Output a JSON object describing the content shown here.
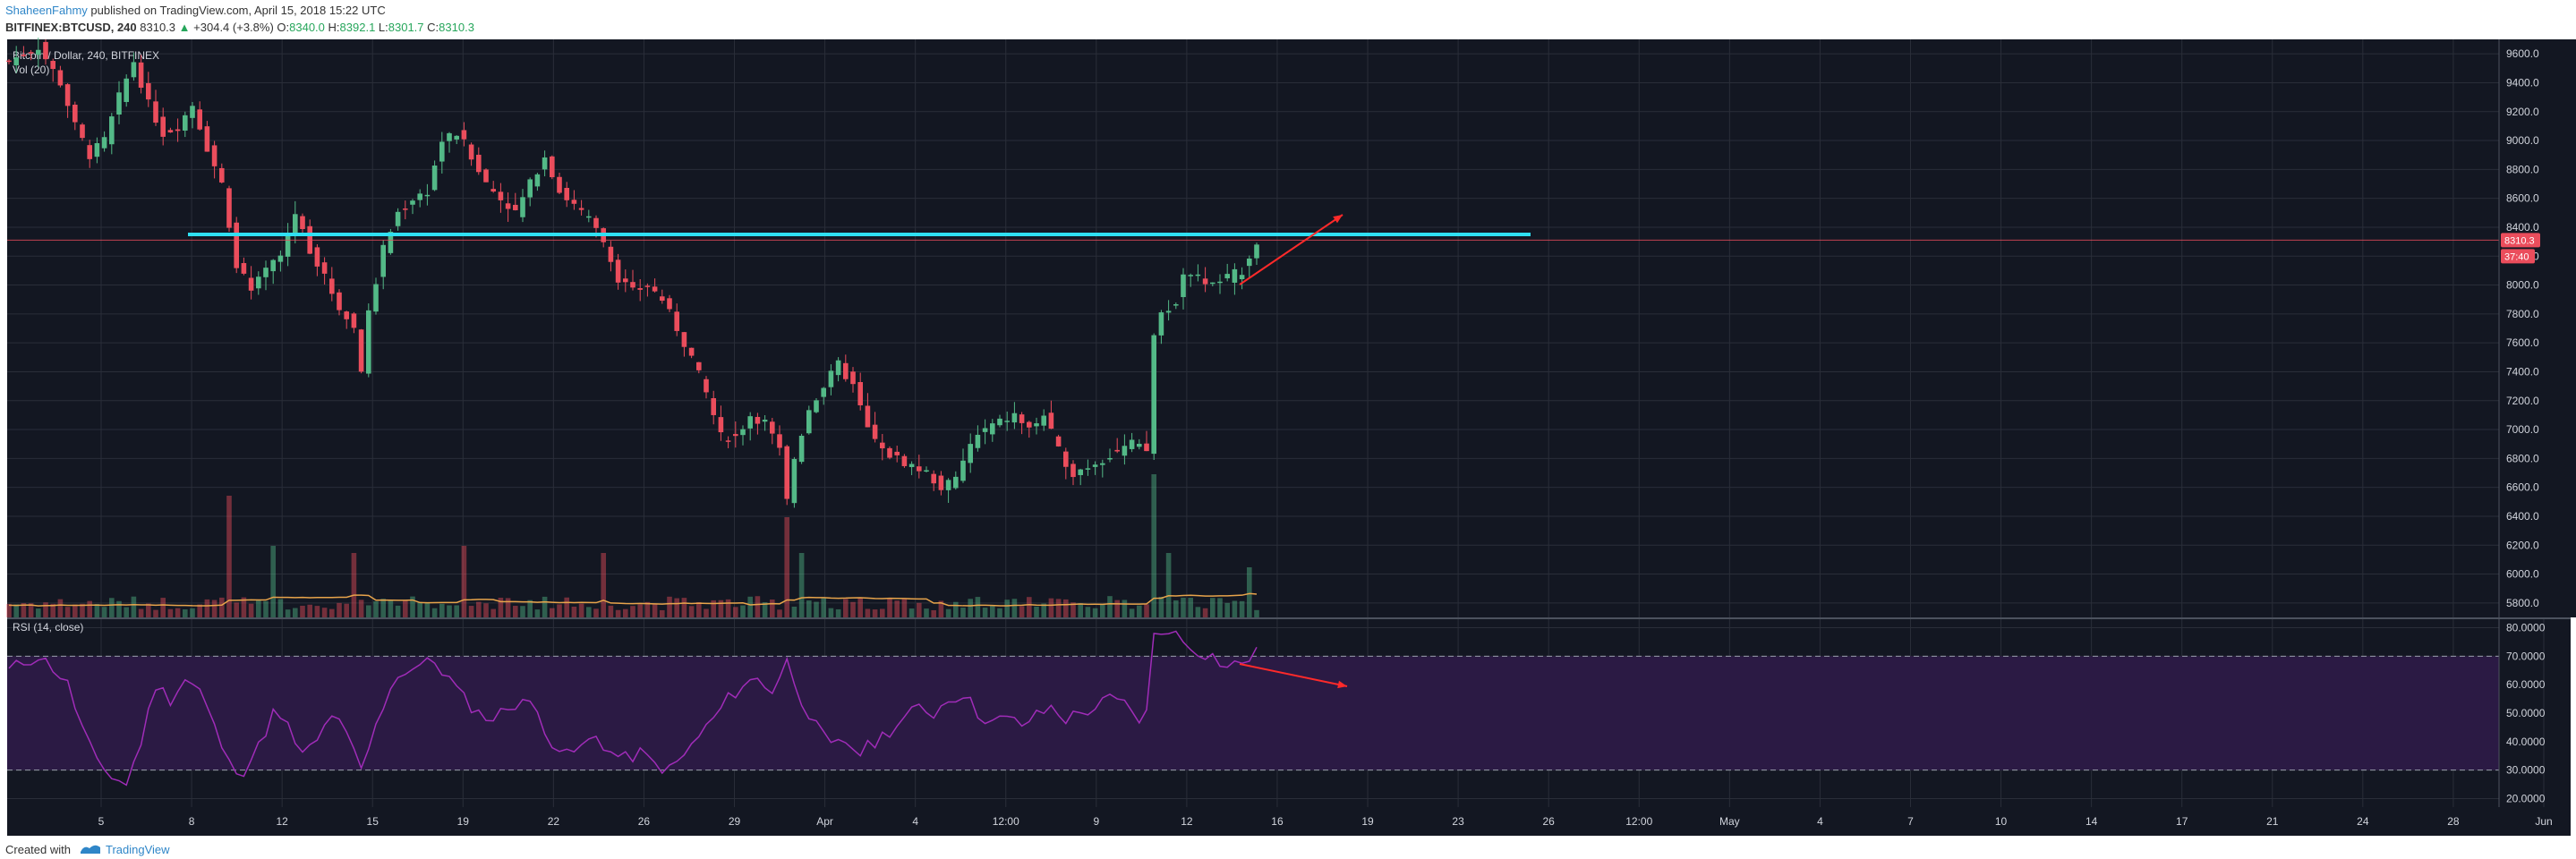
{
  "header": {
    "author": "ShaheenFahmy",
    "published_text": "published on TradingView.com, April 15, 2018 15:22 UTC",
    "symbol": "BITFINEX:BTCUSD, 240",
    "last": "8310.3",
    "change": "+304.4 (+3.8%)",
    "o_label": "O:",
    "o_value": "8340.0",
    "h_label": "H:",
    "h_value": "8392.1",
    "l_label": "L:",
    "l_value": "8301.7",
    "c_label": "C:",
    "c_value": "8310.3"
  },
  "footer": {
    "created_with": "Created with",
    "brand": "TradingView"
  },
  "colors": {
    "background": "#131722",
    "grid": "#2a2e39",
    "up": "#53b987",
    "down": "#eb4d5c",
    "support_line": "#2fe0f2",
    "annotation": "#ff2a2a",
    "rsi_line": "#a02cb8",
    "rsi_band": "#2b1a44",
    "vol_ma": "#e8a44b"
  },
  "chart_data": [
    {
      "type": "candlestick",
      "title": "Bitcoin / Dollar, 240, BITFINEX",
      "ylim": [
        5700,
        9700
      ],
      "y_ticks": [
        5800,
        6000,
        6200,
        6400,
        6600,
        6800,
        7000,
        7200,
        7400,
        7600,
        7800,
        8000,
        8200,
        8400,
        8600,
        8800,
        9000,
        9200,
        9400,
        9600
      ],
      "y_tick_labels": [
        "5800.0",
        "6000.0",
        "6200.0",
        "6400.0",
        "6600.0",
        "6800.0",
        "7000.0",
        "7200.0",
        "7400.0",
        "7600.0",
        "7800.0",
        "8000.0",
        "8200.0",
        "8400.0",
        "8600.0",
        "8800.0",
        "9000.0",
        "9200.0",
        "9400.0",
        "9600.0"
      ],
      "price_label": "8310.3",
      "countdown_label": "37:40",
      "last_price": 8310.3,
      "support_level": 8350,
      "x_labels": [
        "5",
        "8",
        "12",
        "15",
        "19",
        "22",
        "26",
        "29",
        "Apr",
        "4",
        "12:00",
        "9",
        "12",
        "16",
        "19",
        "23",
        "26",
        "12:00",
        "May",
        "4",
        "7",
        "10",
        "14",
        "17",
        "21",
        "24",
        "28",
        "Jun"
      ],
      "close_path": [
        [
          0,
          9550
        ],
        [
          4,
          9650
        ],
        [
          7,
          9400
        ],
        [
          9,
          9100
        ],
        [
          11,
          8900
        ],
        [
          13,
          9000
        ],
        [
          15,
          9300
        ],
        [
          17,
          9550
        ],
        [
          19,
          9250
        ],
        [
          21,
          9050
        ],
        [
          23,
          9100
        ],
        [
          25,
          9250
        ],
        [
          27,
          8950
        ],
        [
          29,
          8700
        ],
        [
          31,
          8150
        ],
        [
          33,
          7950
        ],
        [
          35,
          8100
        ],
        [
          37,
          8200
        ],
        [
          39,
          8500
        ],
        [
          41,
          8250
        ],
        [
          43,
          8050
        ],
        [
          45,
          7850
        ],
        [
          47,
          7700
        ],
        [
          48,
          7420
        ],
        [
          49,
          7800
        ],
        [
          51,
          8250
        ],
        [
          53,
          8500
        ],
        [
          55,
          8600
        ],
        [
          57,
          8650
        ],
        [
          59,
          9000
        ],
        [
          61,
          9050
        ],
        [
          63,
          8900
        ],
        [
          65,
          8700
        ],
        [
          67,
          8600
        ],
        [
          69,
          8500
        ],
        [
          71,
          8700
        ],
        [
          73,
          8900
        ],
        [
          75,
          8650
        ],
        [
          77,
          8550
        ],
        [
          79,
          8450
        ],
        [
          81,
          8300
        ],
        [
          83,
          8050
        ],
        [
          85,
          7950
        ],
        [
          87,
          8000
        ],
        [
          89,
          7900
        ],
        [
          91,
          7700
        ],
        [
          93,
          7500
        ],
        [
          95,
          7250
        ],
        [
          97,
          6950
        ],
        [
          99,
          6950
        ],
        [
          101,
          7100
        ],
        [
          103,
          7050
        ],
        [
          105,
          6850
        ],
        [
          106,
          6500
        ],
        [
          107,
          6800
        ],
        [
          109,
          7150
        ],
        [
          111,
          7300
        ],
        [
          113,
          7450
        ],
        [
          115,
          7300
        ],
        [
          117,
          7000
        ],
        [
          119,
          6850
        ],
        [
          121,
          6800
        ],
        [
          123,
          6750
        ],
        [
          125,
          6700
        ],
        [
          127,
          6600
        ],
        [
          129,
          6650
        ],
        [
          131,
          6900
        ],
        [
          133,
          7000
        ],
        [
          135,
          7050
        ],
        [
          137,
          7100
        ],
        [
          139,
          7000
        ],
        [
          141,
          7100
        ],
        [
          143,
          6850
        ],
        [
          145,
          6700
        ],
        [
          147,
          6750
        ],
        [
          149,
          6800
        ],
        [
          151,
          6850
        ],
        [
          153,
          6900
        ],
        [
          155,
          6850
        ],
        [
          156,
          7650
        ],
        [
          157,
          7800
        ],
        [
          159,
          7900
        ],
        [
          160,
          8100
        ],
        [
          162,
          8050
        ],
        [
          164,
          8000
        ],
        [
          166,
          8050
        ],
        [
          168,
          8100
        ],
        [
          170,
          8310
        ]
      ],
      "volume": {
        "label": "Vol (20)",
        "spikes": [
          [
            30,
            0.85
          ],
          [
            36,
            0.5
          ],
          [
            47,
            0.45
          ],
          [
            62,
            0.5
          ],
          [
            81,
            0.45
          ],
          [
            106,
            0.7
          ],
          [
            108,
            0.45
          ],
          [
            156,
            1.0
          ],
          [
            158,
            0.45
          ],
          [
            169,
            0.35
          ]
        ]
      }
    },
    {
      "type": "line",
      "title": "RSI (14, close)",
      "ylim": [
        17,
        83
      ],
      "band": [
        30,
        70
      ],
      "y_ticks": [
        20,
        30,
        40,
        50,
        60,
        70,
        80
      ],
      "y_tick_labels": [
        "20.0000",
        "30.0000",
        "40.0000",
        "50.0000",
        "60.0000",
        "70.0000",
        "80.0000"
      ],
      "series": [
        {
          "values_path": [
            [
              0,
              65
            ],
            [
              2,
              68
            ],
            [
              4,
              70
            ],
            [
              6,
              66
            ],
            [
              8,
              60
            ],
            [
              10,
              45
            ],
            [
              12,
              32
            ],
            [
              14,
              28
            ],
            [
              16,
              25
            ],
            [
              18,
              40
            ],
            [
              20,
              60
            ],
            [
              22,
              55
            ],
            [
              24,
              62
            ],
            [
              26,
              58
            ],
            [
              28,
              45
            ],
            [
              30,
              32
            ],
            [
              32,
              30
            ],
            [
              34,
              38
            ],
            [
              36,
              50
            ],
            [
              38,
              45
            ],
            [
              40,
              35
            ],
            [
              42,
              40
            ],
            [
              44,
              50
            ],
            [
              46,
              42
            ],
            [
              48,
              30
            ],
            [
              50,
              45
            ],
            [
              52,
              60
            ],
            [
              54,
              65
            ],
            [
              56,
              67
            ],
            [
              58,
              68
            ],
            [
              60,
              62
            ],
            [
              62,
              55
            ],
            [
              64,
              50
            ],
            [
              66,
              48
            ],
            [
              68,
              52
            ],
            [
              70,
              55
            ],
            [
              72,
              50
            ],
            [
              74,
              40
            ],
            [
              76,
              35
            ],
            [
              78,
              38
            ],
            [
              80,
              42
            ],
            [
              82,
              36
            ],
            [
              84,
              34
            ],
            [
              86,
              36
            ],
            [
              88,
              32
            ],
            [
              90,
              30
            ],
            [
              92,
              35
            ],
            [
              94,
              42
            ],
            [
              96,
              48
            ],
            [
              98,
              55
            ],
            [
              100,
              60
            ],
            [
              102,
              62
            ],
            [
              104,
              58
            ],
            [
              106,
              68
            ],
            [
              108,
              55
            ],
            [
              110,
              45
            ],
            [
              112,
              38
            ],
            [
              114,
              40
            ],
            [
              116,
              36
            ],
            [
              118,
              40
            ],
            [
              120,
              44
            ],
            [
              122,
              48
            ],
            [
              124,
              52
            ],
            [
              126,
              50
            ],
            [
              128,
              55
            ],
            [
              130,
              57
            ],
            [
              132,
              50
            ],
            [
              134,
              47
            ],
            [
              136,
              48
            ],
            [
              138,
              46
            ],
            [
              140,
              49
            ],
            [
              142,
              52
            ],
            [
              144,
              48
            ],
            [
              146,
              50
            ],
            [
              148,
              52
            ],
            [
              150,
              55
            ],
            [
              152,
              53
            ],
            [
              154,
              48
            ],
            [
              155,
              50
            ],
            [
              156,
              77
            ],
            [
              158,
              80
            ],
            [
              160,
              75
            ],
            [
              162,
              72
            ],
            [
              164,
              70
            ],
            [
              166,
              66
            ],
            [
              168,
              68
            ],
            [
              170,
              71
            ]
          ]
        }
      ]
    }
  ]
}
